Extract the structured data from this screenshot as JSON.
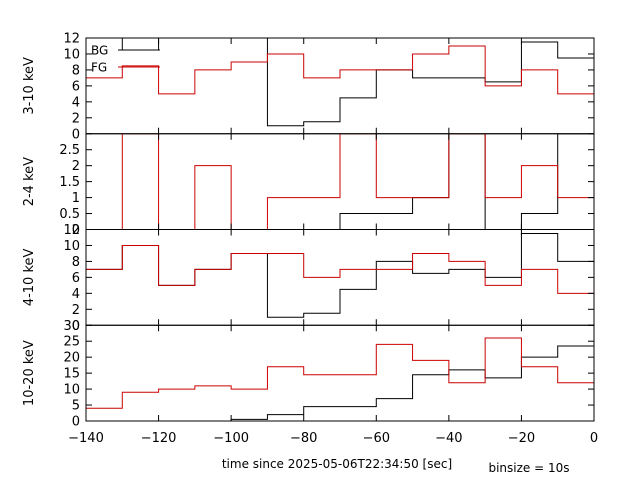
{
  "chart_data": {
    "type": "line",
    "step": "post",
    "xlabel": "time since 2025-05-06T22:34:50 [sec]",
    "xlim": [
      -140,
      0
    ],
    "xticks": [
      -140,
      -120,
      -100,
      -80,
      -60,
      -40,
      -20,
      0
    ],
    "binsize_label": "binsize = 10s",
    "legend": {
      "placement": "top-left",
      "entries": [
        "BG",
        "FG"
      ]
    },
    "colors": {
      "BG": "#000000",
      "FG": "#cc0000"
    },
    "bin_edges": [
      -140,
      -130,
      -120,
      -110,
      -100,
      -90,
      -80,
      -70,
      -60,
      -50,
      -40,
      -30,
      -20,
      -10,
      0
    ],
    "panels": [
      {
        "ylabel": "3-10 keV",
        "ylim": [
          0,
          12
        ],
        "yticks": [
          0,
          2,
          4,
          6,
          8,
          10,
          12
        ],
        "series": [
          {
            "name": "BG",
            "values": [
              12,
              10.5,
              12,
              12,
              12,
              1,
              1.5,
              4.5,
              8,
              7,
              7,
              6.5,
              11.5,
              9.5
            ]
          },
          {
            "name": "FG",
            "values": [
              7,
              8.5,
              5,
              8,
              9,
              10,
              7,
              8,
              8,
              10,
              11,
              6,
              8,
              5
            ]
          }
        ]
      },
      {
        "ylabel": "2-4 keV",
        "ylim": [
          0,
          3
        ],
        "yticks": [
          0,
          0.5,
          1,
          1.5,
          2,
          2.5
        ],
        "series": [
          {
            "name": "BG",
            "values": [
              0,
              0,
              0,
              0,
              0,
              0,
              0,
              0.5,
              0.5,
              1,
              3,
              0,
              0.5,
              3
            ]
          },
          {
            "name": "FG",
            "values": [
              0,
              3,
              0,
              2,
              0,
              1,
              1,
              3,
              1,
              1,
              3,
              1,
              2,
              1
            ]
          }
        ]
      },
      {
        "ylabel": "4-10 keV",
        "ylim": [
          0,
          12
        ],
        "yticks": [
          0,
          2,
          4,
          6,
          8,
          10,
          12
        ],
        "series": [
          {
            "name": "BG",
            "values": [
              7,
              10,
              5,
              7,
              9,
              1,
              1.5,
              4.5,
              8,
              6.5,
              7,
              6,
              11.5,
              8
            ]
          },
          {
            "name": "FG",
            "values": [
              7,
              10,
              5,
              7,
              9,
              9,
              6,
              7,
              7,
              9,
              8,
              5,
              7,
              4
            ]
          }
        ]
      },
      {
        "ylabel": "10-20 keV",
        "ylim": [
          0,
          30
        ],
        "yticks": [
          0,
          5,
          10,
          15,
          20,
          25,
          30
        ],
        "series": [
          {
            "name": "BG",
            "values": [
              0,
              0,
              0,
              0,
              0.5,
              2,
              4.5,
              4.5,
              7,
              14.5,
              16,
              13.5,
              20,
              23.5
            ]
          },
          {
            "name": "FG",
            "values": [
              4,
              9,
              10,
              11,
              10,
              17,
              14.5,
              14.5,
              24,
              19,
              12,
              26,
              17,
              12
            ]
          }
        ]
      }
    ]
  }
}
